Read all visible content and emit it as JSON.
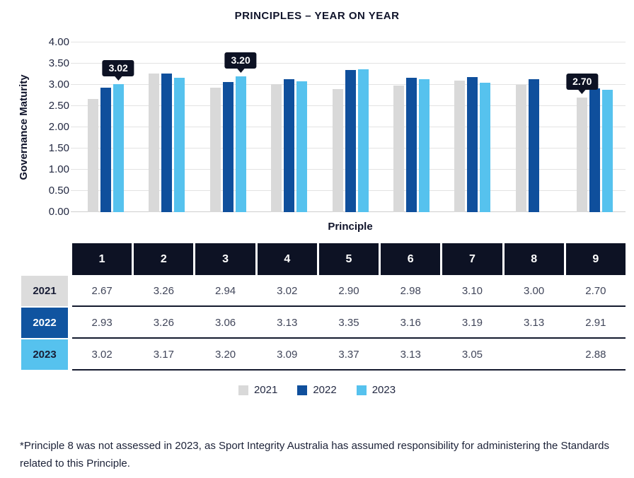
{
  "title": "PRINCIPLES – YEAR ON YEAR",
  "chart_data": {
    "type": "bar",
    "title": "PRINCIPLES – YEAR ON YEAR",
    "xlabel": "Principle",
    "ylabel": "Governance Maturity",
    "ylim": [
      0,
      4
    ],
    "ytick_step": 0.5,
    "grid": true,
    "legend_position": "bottom",
    "categories": [
      "1",
      "2",
      "3",
      "4",
      "5",
      "6",
      "7",
      "8",
      "9"
    ],
    "series": [
      {
        "name": "2021",
        "color": "#d9d9d9",
        "values": [
          2.67,
          3.26,
          2.94,
          3.02,
          2.9,
          2.98,
          3.1,
          3.0,
          2.7
        ]
      },
      {
        "name": "2022",
        "color": "#0f4f9c",
        "values": [
          2.93,
          3.26,
          3.06,
          3.13,
          3.35,
          3.16,
          3.19,
          3.13,
          2.91
        ]
      },
      {
        "name": "2023",
        "color": "#56c2ee",
        "values": [
          3.02,
          3.17,
          3.2,
          3.09,
          3.37,
          3.13,
          3.05,
          null,
          2.88
        ]
      }
    ],
    "annotations": [
      {
        "label": "3.02",
        "category": "1",
        "series": "2023"
      },
      {
        "label": "3.20",
        "category": "3",
        "series": "2023"
      },
      {
        "label": "2.70",
        "category": "9",
        "series": "2021"
      }
    ]
  },
  "table": {
    "column_headers": [
      "1",
      "2",
      "3",
      "4",
      "5",
      "6",
      "7",
      "8",
      "9"
    ],
    "rows": [
      {
        "label": "2021",
        "label_bg": "#dcdcdc",
        "label_color": "#181d35",
        "values": [
          "2.67",
          "3.26",
          "2.94",
          "3.02",
          "2.90",
          "2.98",
          "3.10",
          "3.00",
          "2.70"
        ]
      },
      {
        "label": "2022",
        "label_bg": "#1054a0",
        "label_color": "#ffffff",
        "values": [
          "2.93",
          "3.26",
          "3.06",
          "3.13",
          "3.35",
          "3.16",
          "3.19",
          "3.13",
          "2.91"
        ]
      },
      {
        "label": "2023",
        "label_bg": "#56c2ee",
        "label_color": "#181d35",
        "values": [
          "3.02",
          "3.17",
          "3.20",
          "3.09",
          "3.37",
          "3.13",
          "3.05",
          "",
          "2.88"
        ]
      }
    ]
  },
  "colors": {
    "header_bg": "#0d1224",
    "callout_bg": "#0d1224",
    "navy_text": "#10142b"
  },
  "footnote": {
    "line1": "*Principle 8 was not assessed in 2023, as Sport Integrity Australia has assumed responsibility for administering the Standards",
    "line2": "related to this Principle."
  }
}
